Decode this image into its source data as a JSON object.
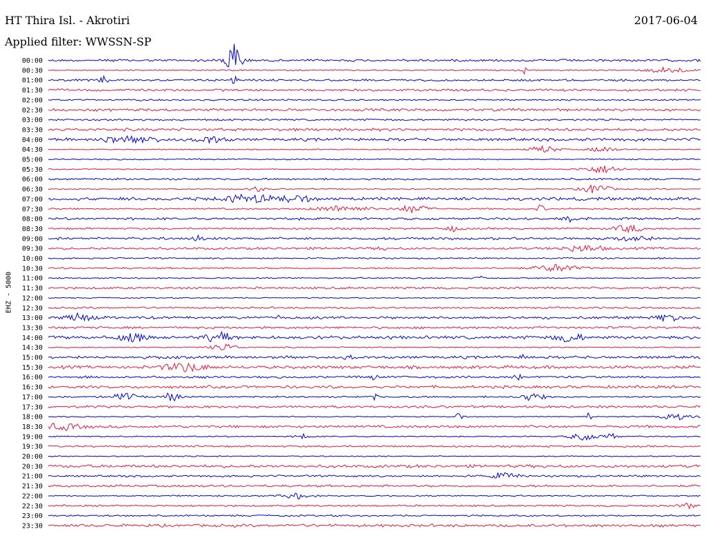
{
  "header": {
    "station": "HT Thira Isl. - Akrotiri",
    "date": "2017-06-04",
    "filter": "Applied filter: WWSSN-SP"
  },
  "channel_label": "EHZ - 5000",
  "colors": {
    "even_rows": "#0000cc",
    "odd_rows": "#e0143c"
  },
  "chart_data": {
    "type": "line",
    "title": "HT Thira Isl. - Akrotiri",
    "subtitle": "Applied filter: WWSSN-SP",
    "ylabel": "EHZ - 5000",
    "row_labels": [
      "00:00",
      "00:30",
      "01:00",
      "01:30",
      "02:00",
      "02:30",
      "03:00",
      "03:30",
      "04:00",
      "04:30",
      "05:00",
      "05:30",
      "06:00",
      "06:30",
      "07:00",
      "07:30",
      "08:00",
      "08:30",
      "09:00",
      "09:30",
      "10:00",
      "10:30",
      "11:00",
      "11:30",
      "12:00",
      "12:30",
      "13:00",
      "13:30",
      "14:00",
      "14:30",
      "15:00",
      "15:30",
      "16:00",
      "16:30",
      "17:00",
      "17:30",
      "18:00",
      "18:30",
      "19:00",
      "19:30",
      "20:00",
      "20:30",
      "21:00",
      "21:30",
      "22:00",
      "22:30",
      "23:00",
      "23:30"
    ],
    "rows_minutes": 30,
    "grid": false,
    "legend": "none"
  }
}
